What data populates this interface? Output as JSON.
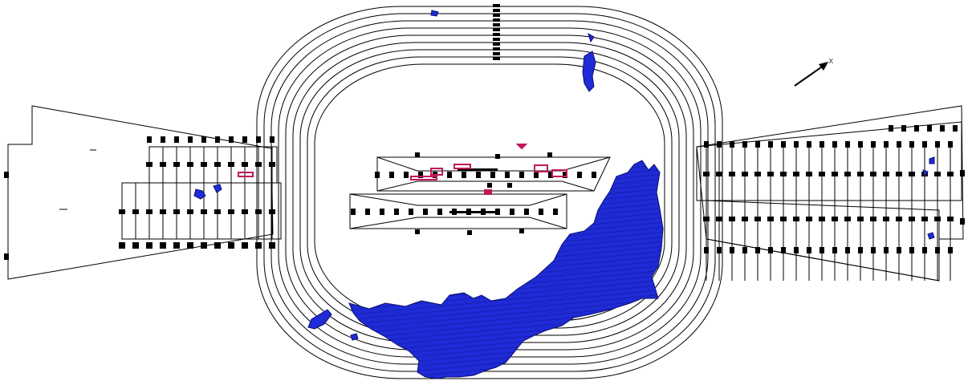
{
  "colors": {
    "background": "#ffffff",
    "linework": "#000000",
    "region_fill": "#1f2bd6",
    "region_outline": "#0a1070",
    "accent_marks": "#c2185b"
  },
  "compass": {
    "icon": "north-arrow-icon",
    "label": "x"
  }
}
